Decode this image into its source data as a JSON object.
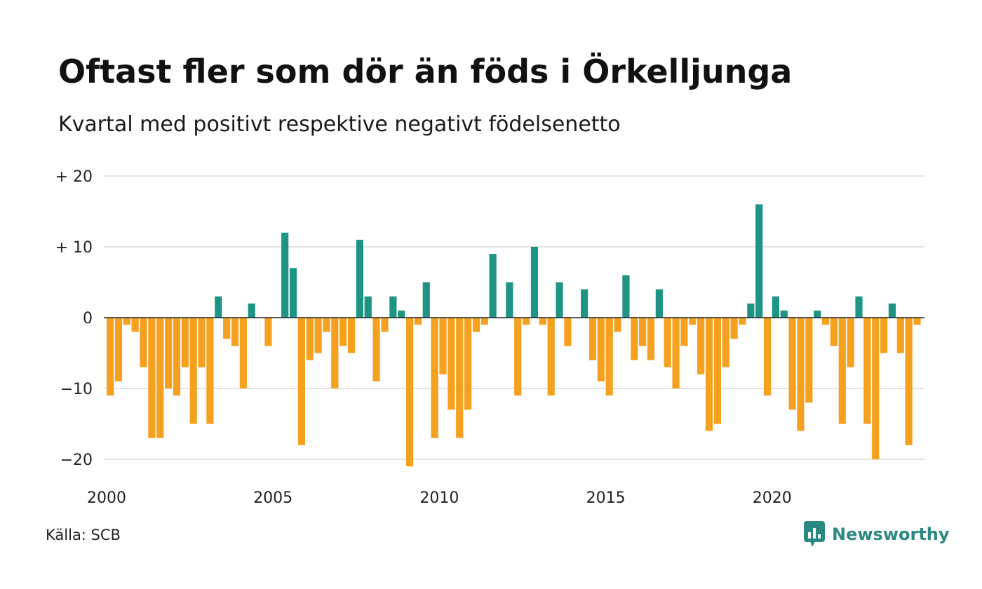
{
  "header": {
    "title": "Oftast fler som dör än föds i Örkelljunga",
    "subtitle": "Kvartal med positivt respektive negativt födelsenetto"
  },
  "footer": {
    "source": "Källa: SCB",
    "brand": "Newsworthy",
    "brand_icon": "chart-bubble-icon"
  },
  "colors": {
    "positive": "#1e9484",
    "negative": "#f5a11f",
    "grid": "#e3e3e3",
    "zero_line": "#222222",
    "brand": "#2b8a80"
  },
  "chart_data": {
    "type": "bar",
    "xlabel": "",
    "ylabel": "",
    "ylim": [
      -23,
      20
    ],
    "y_ticks": [
      20,
      10,
      0,
      -10,
      -20
    ],
    "y_tick_labels": [
      "+ 20",
      "+ 10",
      "0",
      "−10",
      "−20"
    ],
    "x_ticks": [
      2000,
      2005,
      2010,
      2015,
      2020
    ],
    "x_tick_labels": [
      "2000",
      "2005",
      "2010",
      "2015",
      "2020"
    ],
    "x_start": 2000,
    "quarters_per_year": 4,
    "grid": true,
    "values": [
      -11,
      -9,
      -1,
      -2,
      -7,
      -17,
      -17,
      -10,
      -11,
      -7,
      -15,
      -7,
      -15,
      3,
      -3,
      -4,
      -10,
      2,
      0,
      -4,
      0,
      12,
      7,
      -18,
      -6,
      -5,
      -2,
      -10,
      -4,
      -5,
      11,
      3,
      -9,
      -2,
      3,
      1,
      -21,
      -1,
      5,
      -17,
      -8,
      -13,
      -17,
      -13,
      -2,
      -1,
      9,
      0,
      5,
      -11,
      -1,
      10,
      -1,
      -11,
      5,
      -4,
      0,
      4,
      -6,
      -9,
      -11,
      -2,
      6,
      -6,
      -4,
      -6,
      4,
      -7,
      -10,
      -4,
      -1,
      -8,
      -16,
      -15,
      -7,
      -3,
      -1,
      2,
      16,
      -11,
      3,
      1,
      -13,
      -16,
      -12,
      1,
      -1,
      -4,
      -15,
      -7,
      3,
      -15,
      -20,
      -5,
      2,
      -5,
      -18,
      -1
    ]
  }
}
